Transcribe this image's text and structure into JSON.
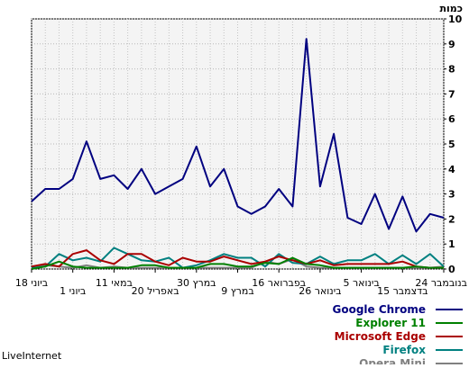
{
  "chart_data": {
    "type": "line",
    "ylabel": "כמות",
    "ylim": [
      0,
      10
    ],
    "yticks": [
      0,
      1,
      2,
      3,
      4,
      5,
      6,
      7,
      8,
      9,
      10
    ],
    "grid": true,
    "legend_position": "bottom-right",
    "x_labels_row1": [
      "18 ביוני",
      "11 במאי",
      "30 במרץ",
      "16 בפברואר",
      "5 בינואר",
      "24 בנובמבר"
    ],
    "x_labels_row2": [
      "1 ביוני",
      "20 באפריל",
      "9 במרץ",
      "26 בינואר",
      "15 בדצמבר"
    ],
    "series": [
      {
        "name": "Google Chrome",
        "color": "#000080",
        "values": [
          2.7,
          3.2,
          3.2,
          3.6,
          5.1,
          3.6,
          3.75,
          3.2,
          4.0,
          3.0,
          3.3,
          3.6,
          4.9,
          3.3,
          4.0,
          2.5,
          2.2,
          2.5,
          3.2,
          2.5,
          9.2,
          3.3,
          5.4,
          2.05,
          1.8,
          3.0,
          1.6,
          2.9,
          1.5,
          2.2,
          2.05
        ]
      },
      {
        "name": "Explorer 11",
        "color": "#008000",
        "values": [
          0.0,
          0.1,
          0.3,
          0.1,
          0.05,
          0.05,
          0.05,
          0.05,
          0.15,
          0.15,
          0.05,
          0.05,
          0.05,
          0.2,
          0.2,
          0.1,
          0.1,
          0.25,
          0.2,
          0.45,
          0.2,
          0.15,
          0.05,
          0.05,
          0.05,
          0.05,
          0.05,
          0.05,
          0.1,
          0.05,
          0.05
        ]
      },
      {
        "name": "Microsoft Edge",
        "color": "#aa0000",
        "values": [
          0.1,
          0.2,
          0.1,
          0.6,
          0.75,
          0.35,
          0.2,
          0.6,
          0.6,
          0.3,
          0.15,
          0.45,
          0.3,
          0.3,
          0.5,
          0.35,
          0.2,
          0.3,
          0.5,
          0.35,
          0.2,
          0.35,
          0.15,
          0.2,
          0.2,
          0.2,
          0.2,
          0.3,
          0.1,
          0.05,
          0.05
        ]
      },
      {
        "name": "Firefox",
        "color": "#008080",
        "values": [
          0.05,
          0.1,
          0.6,
          0.35,
          0.45,
          0.3,
          0.85,
          0.6,
          0.35,
          0.3,
          0.45,
          0.05,
          0.15,
          0.35,
          0.6,
          0.45,
          0.45,
          0.1,
          0.6,
          0.25,
          0.2,
          0.5,
          0.2,
          0.35,
          0.35,
          0.6,
          0.2,
          0.55,
          0.2,
          0.6,
          0.1
        ]
      },
      {
        "name": "Opera Mini",
        "color": "#808080",
        "values": [
          0.0,
          0.15,
          0.1,
          0.05,
          0.15,
          0.05,
          0.1,
          0.05,
          0.05,
          0.05,
          0.05,
          0.05,
          0.05,
          0.05,
          0.05,
          0.05,
          0.05,
          0.3,
          0.2,
          0.4,
          0.1,
          0.05,
          0.05,
          0.05,
          0.05,
          0.05,
          0.05,
          0.05,
          0.05,
          0.05,
          0.1
        ]
      }
    ]
  },
  "footer": {
    "brand": "LiveInternet"
  }
}
